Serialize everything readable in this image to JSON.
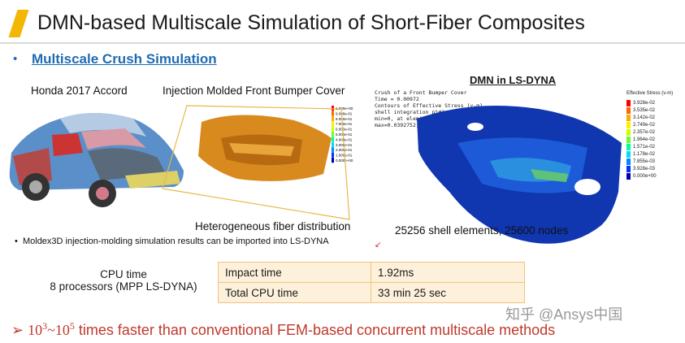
{
  "title": "DMN-based Multiscale Simulation of Short-Fiber Composites",
  "section": "Multiscale Crush Simulation",
  "labels": {
    "car": "Honda 2017 Accord",
    "bumper": "Injection Molded Front Bumper Cover",
    "dmn": "DMN in LS-DYNA",
    "fiber": "Heterogeneous fiber distribution",
    "elements": "25256 shell elements, 25600 nodes",
    "moldex": "Moldex3D injection-molding simulation results can be imported into LS-DYNA"
  },
  "dyna_header": [
    "Crush of a Front Bumper Cover",
    "Time = 0.00972",
    "Contours of Effective Stress (v-m)",
    "shell integration pt#1",
    "min=0, at elem# 2921",
    "max=0.0392752, at elem# 1..."
  ],
  "legend_title": "Effective Stress (v-m)",
  "legend_values": [
    "3.928e-02",
    "3.535e-02",
    "3.142e-02",
    "2.749e-02",
    "2.357e-02",
    "1.964e-02",
    "1.571e-02",
    "1.178e-02",
    "7.855e-03",
    "3.928e-03",
    "0.000e+00"
  ],
  "legend_colors": [
    "#ff0000",
    "#ff6600",
    "#ffaa00",
    "#ffee00",
    "#ccff00",
    "#66ff33",
    "#00ff99",
    "#00ddff",
    "#0088ff",
    "#0033ff",
    "#0000aa"
  ],
  "bumper_legend": [
    "1.000e+00",
    "9.000e-01",
    "8.000e-01",
    "7.000e-01",
    "6.000e-01",
    "5.000e-01",
    "4.000e-01",
    "3.000e-01",
    "2.000e-01",
    "1.000e-01",
    "0.000e+00"
  ],
  "cpu": {
    "line1": "CPU time",
    "line2": "8 processors (MPP LS-DYNA)"
  },
  "table": [
    {
      "label": "Impact time",
      "value": "1.92ms"
    },
    {
      "label": "Total CPU time",
      "value": "33 min 25 sec"
    }
  ],
  "conclusion": {
    "prefix": "➢",
    "base": "10",
    "exp1": "3",
    "sep": "~",
    "exp2": "5",
    "rest": " times faster than conventional FEM-based concurrent multiscale methods"
  },
  "watermark": "知乎 @Ansys中国",
  "colors": {
    "accent": "#f2b705",
    "link": "#1f6bb3",
    "conclusion": "#c0392b",
    "table_bg": "#fdf1dc",
    "table_border": "#f0c47a"
  }
}
